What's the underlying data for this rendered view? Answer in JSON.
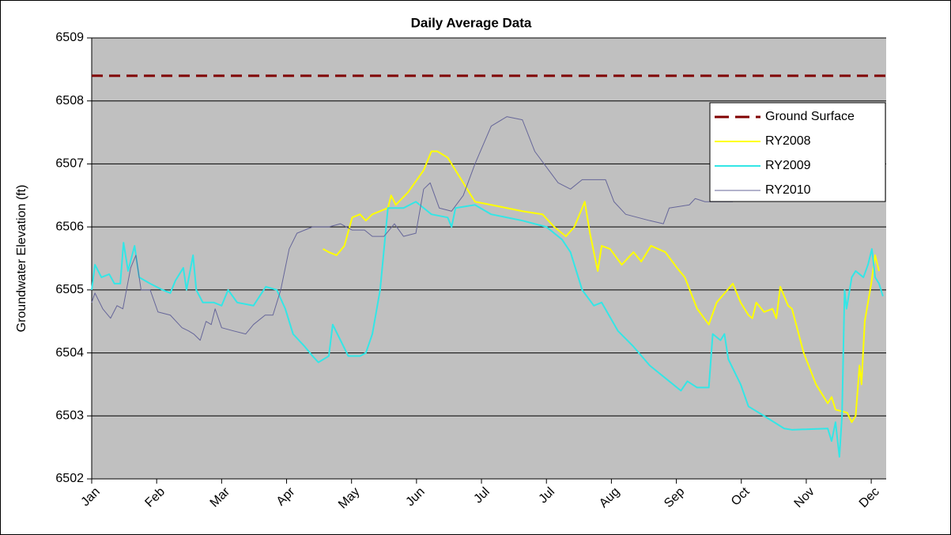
{
  "chart_data": {
    "type": "line",
    "title": "Daily Average Data",
    "y_label": "Groundwater Elevation (ft)",
    "xlim": [
      0,
      12.23
    ],
    "ylim": [
      6502,
      6509
    ],
    "yticks": [
      6502,
      6503,
      6504,
      6505,
      6506,
      6507,
      6508,
      6509
    ],
    "xticks": [
      {
        "value": 0,
        "label": "Jan"
      },
      {
        "value": 1,
        "label": "Feb"
      },
      {
        "value": 2,
        "label": "Mar"
      },
      {
        "value": 3,
        "label": "Apr"
      },
      {
        "value": 4,
        "label": "May"
      },
      {
        "value": 5,
        "label": "Jun"
      },
      {
        "value": 6,
        "label": "Jul"
      },
      {
        "value": 7,
        "label": "Jul"
      },
      {
        "value": 8,
        "label": "Aug"
      },
      {
        "value": 9,
        "label": "Sep"
      },
      {
        "value": 10,
        "label": "Oct"
      },
      {
        "value": 11,
        "label": "Nov"
      },
      {
        "value": 12,
        "label": "Dec"
      }
    ],
    "grid": true,
    "legend": "right",
    "background": "#c0c0c0",
    "series": [
      {
        "name": "Ground Surface",
        "color": "#800000",
        "line_style": "dashed",
        "line_width": 3,
        "x": [
          0,
          12.23
        ],
        "values": [
          6508.4,
          6508.4
        ]
      },
      {
        "name": "RY2008",
        "color": "#ffff00",
        "line_style": "solid",
        "line_width": 2,
        "x": [
          3.56,
          3.65,
          3.77,
          3.89,
          4.01,
          4.13,
          4.22,
          4.32,
          4.56,
          4.61,
          4.68,
          4.87,
          5.11,
          5.23,
          5.32,
          5.48,
          5.66,
          5.9,
          6.15,
          6.39,
          6.63,
          6.94,
          7.12,
          7.3,
          7.43,
          7.59,
          7.67,
          7.79,
          7.85,
          7.98,
          8.16,
          8.34,
          8.46,
          8.61,
          8.83,
          9.01,
          9.13,
          9.32,
          9.5,
          9.62,
          9.87,
          9.99,
          10.11,
          10.17,
          10.23,
          10.35,
          10.48,
          10.54,
          10.6,
          10.72,
          10.78,
          10.96,
          11.15,
          11.33,
          11.39,
          11.45,
          11.63,
          11.7,
          11.76,
          11.82,
          11.85,
          11.9,
          12.0,
          12.06,
          12.12
        ],
        "values": [
          6505.65,
          6505.6,
          6505.55,
          6505.7,
          6506.15,
          6506.2,
          6506.1,
          6506.2,
          6506.3,
          6506.5,
          6506.35,
          6506.55,
          6506.9,
          6507.2,
          6507.2,
          6507.1,
          6506.8,
          6506.4,
          6506.35,
          6506.3,
          6506.25,
          6506.2,
          6506.0,
          6505.85,
          6506.0,
          6506.4,
          6505.9,
          6505.3,
          6505.7,
          6505.65,
          6505.4,
          6505.6,
          6505.45,
          6505.7,
          6505.6,
          6505.35,
          6505.2,
          6504.7,
          6504.45,
          6504.8,
          6505.1,
          6504.8,
          6504.6,
          6504.55,
          6504.8,
          6504.65,
          6504.7,
          6504.55,
          6505.05,
          6504.75,
          6504.7,
          6504.0,
          6503.5,
          6503.2,
          6503.3,
          6503.1,
          6503.05,
          6502.9,
          6503.0,
          6503.8,
          6503.5,
          6504.5,
          6505.1,
          6505.55,
          6505.3
        ]
      },
      {
        "name": "RY2009",
        "color": "#33e6e6",
        "line_style": "solid",
        "line_width": 2,
        "x": [
          0,
          0.05,
          0.15,
          0.27,
          0.35,
          0.44,
          0.49,
          0.56,
          0.66,
          0.73,
          0.9,
          1.09,
          1.21,
          1.29,
          1.41,
          1.46,
          1.56,
          1.61,
          1.71,
          1.88,
          2.0,
          2.1,
          2.24,
          2.49,
          2.68,
          2.85,
          2.98,
          3.1,
          3.28,
          3.4,
          3.49,
          3.65,
          3.71,
          3.83,
          3.95,
          4.13,
          4.22,
          4.32,
          4.44,
          4.56,
          4.8,
          4.99,
          5.23,
          5.48,
          5.54,
          5.6,
          5.9,
          6.15,
          6.63,
          7.0,
          7.24,
          7.37,
          7.55,
          7.73,
          7.85,
          8.1,
          8.34,
          8.59,
          8.83,
          9.07,
          9.17,
          9.32,
          9.5,
          9.56,
          9.68,
          9.74,
          9.8,
          9.99,
          10.11,
          10.35,
          10.66,
          10.78,
          11.33,
          11.39,
          11.45,
          11.51,
          11.55,
          11.59,
          11.62,
          11.7,
          11.76,
          11.88,
          11.95,
          12.01,
          12.06,
          12.12,
          12.18
        ],
        "values": [
          6505.0,
          6505.4,
          6505.2,
          6505.25,
          6505.1,
          6505.1,
          6505.75,
          6505.3,
          6505.7,
          6505.2,
          6505.1,
          6505.0,
          6504.95,
          6505.15,
          6505.35,
          6505.0,
          6505.55,
          6505.0,
          6504.8,
          6504.8,
          6504.75,
          6505.0,
          6504.8,
          6504.75,
          6505.05,
          6505.0,
          6504.7,
          6504.3,
          6504.1,
          6503.95,
          6503.85,
          6503.95,
          6504.45,
          6504.2,
          6503.95,
          6503.95,
          6504.0,
          6504.3,
          6505.0,
          6506.3,
          6506.3,
          6506.4,
          6506.2,
          6506.15,
          6506.0,
          6506.3,
          6506.35,
          6506.2,
          6506.1,
          6506.0,
          6505.8,
          6505.6,
          6505.0,
          6504.75,
          6504.8,
          6504.35,
          6504.1,
          6503.8,
          6503.6,
          6503.4,
          6503.55,
          6503.45,
          6503.45,
          6504.3,
          6504.2,
          6504.3,
          6503.9,
          6503.5,
          6503.15,
          6503.0,
          6502.8,
          6502.78,
          6502.8,
          6502.6,
          6502.9,
          6502.35,
          6503.0,
          6505.0,
          6504.7,
          6505.2,
          6505.3,
          6505.2,
          6505.4,
          6505.65,
          6505.2,
          6505.1,
          6504.9
        ]
      },
      {
        "name": "RY2010",
        "color": "#666699",
        "line_style": "solid",
        "line_width": 1,
        "x": [
          0,
          0.05,
          0.17,
          0.29,
          0.39,
          0.48,
          0.6,
          0.68,
          0.76,
          0.9,
          1.02,
          1.21,
          1.39,
          1.49,
          1.57,
          1.67,
          1.76,
          1.84,
          1.9,
          2.0,
          2.18,
          2.37,
          2.49,
          2.67,
          2.79,
          2.91,
          3.04,
          3.16,
          3.4,
          3.65,
          3.83,
          4.01,
          4.2,
          4.32,
          4.5,
          4.66,
          4.8,
          4.99,
          5.11,
          5.21,
          5.35,
          5.54,
          5.72,
          5.9,
          6.15,
          6.39,
          6.63,
          6.82,
          7.0,
          7.18,
          7.37,
          7.55,
          7.91,
          8.04,
          8.22,
          8.59,
          8.8,
          8.89,
          9.2,
          9.29,
          9.44,
          9.87
        ],
        "values": [
          6504.8,
          6504.95,
          6504.7,
          6504.55,
          6504.75,
          6504.7,
          6505.35,
          6505.55,
          6505.0,
          6505.0,
          6504.65,
          6504.6,
          6504.4,
          6504.35,
          6504.3,
          6504.2,
          6504.5,
          6504.45,
          6504.7,
          6504.4,
          6504.35,
          6504.3,
          6504.45,
          6504.6,
          6504.6,
          6505.0,
          6505.65,
          6505.9,
          6506.0,
          6506.0,
          6506.05,
          6505.95,
          6505.95,
          6505.85,
          6505.85,
          6506.05,
          6505.85,
          6505.9,
          6506.6,
          6506.7,
          6506.3,
          6506.25,
          6506.5,
          6507.0,
          6507.6,
          6507.75,
          6507.7,
          6507.2,
          6506.95,
          6506.7,
          6506.6,
          6506.75,
          6506.75,
          6506.4,
          6506.2,
          6506.1,
          6506.05,
          6506.3,
          6506.35,
          6506.45,
          6506.4,
          6506.4
        ]
      }
    ]
  }
}
